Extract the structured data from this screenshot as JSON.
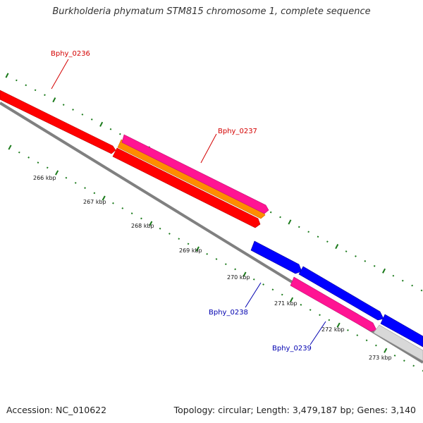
{
  "title": "Burkholderia phymatum STM815 chromosome 1, complete sequence",
  "footer": {
    "accession": "Accession: NC_010622",
    "stats": "Topology: circular; Length: 3,479,187 bp; Genes: 3,140"
  },
  "ticks": [
    "266 kbp",
    "267 kbp",
    "268 kbp",
    "269 kbp",
    "270 kbp",
    "271 kbp",
    "272 kbp",
    "273 kbp"
  ],
  "genes": [
    {
      "name": "Bphy_0236",
      "color": "#d40000"
    },
    {
      "name": "Bphy_0237",
      "color": "#d40000"
    },
    {
      "name": "Bphy_0238",
      "color": "#0000b0"
    },
    {
      "name": "Bphy_0239",
      "color": "#0000b0"
    }
  ],
  "colors": {
    "cds_red": "#ff0000",
    "rna_orange": "#ff8c00",
    "misc_pink": "#ff1493",
    "cds_blue": "#0000ff",
    "backbone": "#808080",
    "tick_green": "#1a7a1a"
  }
}
